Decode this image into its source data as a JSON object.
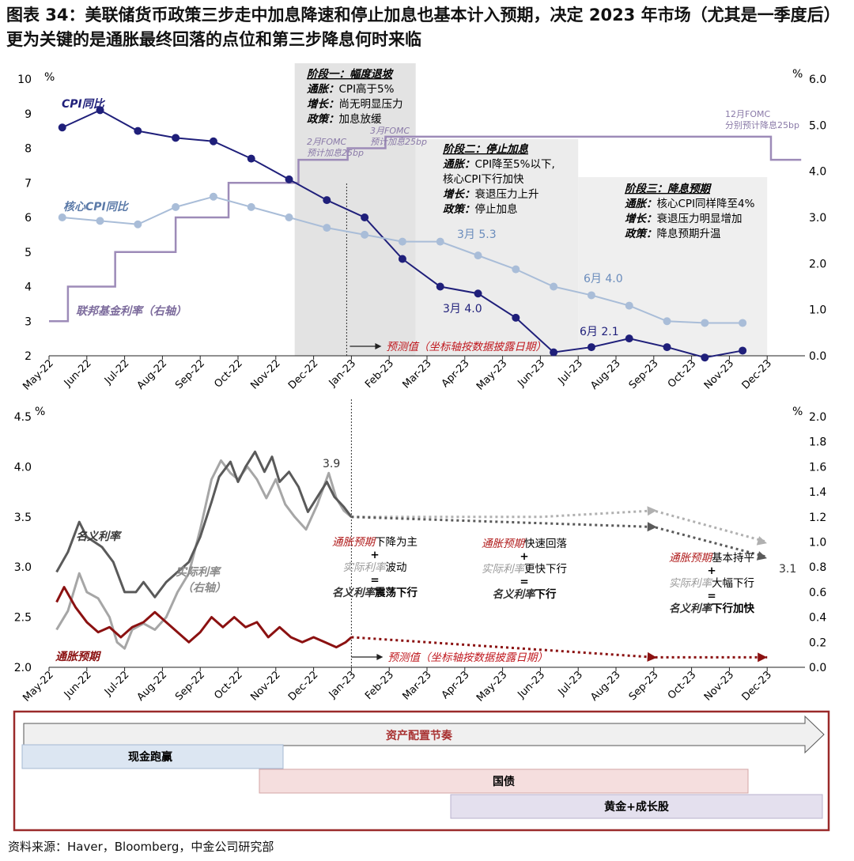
{
  "title": "图表 34：美联储货币政策三步走中加息降速和停止加息也基本计入预期，决定 2023 年市场（尤其是一季度后）更为关键的是通胀最终回落的点位和第三步降息何时来临",
  "source": "资料来源：Haver，Bloomberg，中金公司研究部",
  "months": [
    "May-22",
    "Jun-22",
    "Jul-22",
    "Aug-22",
    "Sep-22",
    "Oct-22",
    "Nov-22",
    "Dec-22",
    "Jan-23",
    "Feb-23",
    "Mar-23",
    "Apr-23",
    "May-23",
    "Jun-23",
    "Jul-23",
    "Aug-23",
    "Sep-23",
    "Oct-23",
    "Nov-23",
    "Dec-23"
  ],
  "chart_data": [
    {
      "type": "line",
      "x": [
        "May-22",
        "Jun-22",
        "Jul-22",
        "Aug-22",
        "Sep-22",
        "Oct-22",
        "Nov-22",
        "Dec-22",
        "Jan-23",
        "Feb-23",
        "Mar-23",
        "Apr-23",
        "May-23",
        "Jun-23",
        "Jul-23",
        "Aug-23",
        "Sep-23",
        "Oct-23",
        "Nov-23",
        "Dec-23"
      ],
      "y_unit": "%",
      "y2_unit": "%",
      "ylim": [
        2,
        10
      ],
      "y2lim": [
        0,
        6
      ],
      "yticks": [
        2,
        3,
        4,
        5,
        6,
        7,
        8,
        9,
        10
      ],
      "y2ticks": [
        "0.0",
        "1.0",
        "2.0",
        "3.0",
        "4.0",
        "5.0",
        "6.0"
      ],
      "series": [
        {
          "name": "CPI同比",
          "axis": "left",
          "color": "#1f1f7a",
          "points": [
            [
              0.35,
              8.6
            ],
            [
              1.35,
              9.1
            ],
            [
              2.35,
              8.5
            ],
            [
              3.35,
              8.3
            ],
            [
              4.35,
              8.2
            ],
            [
              5.35,
              7.7
            ],
            [
              6.35,
              7.1
            ],
            [
              7.35,
              6.5
            ],
            [
              8.35,
              6.0
            ],
            [
              9.35,
              4.8
            ],
            [
              10.35,
              4.0
            ],
            [
              11.35,
              3.8
            ],
            [
              12.35,
              3.1
            ],
            [
              13.35,
              2.1
            ],
            [
              14.35,
              2.25
            ],
            [
              15.35,
              2.5
            ],
            [
              16.35,
              2.25
            ],
            [
              17.35,
              1.95
            ],
            [
              18.35,
              2.15
            ]
          ]
        },
        {
          "name": "核心CPI同比",
          "axis": "left",
          "color": "#a9bdd8",
          "points": [
            [
              0.35,
              6.0
            ],
            [
              1.35,
              5.9
            ],
            [
              2.35,
              5.8
            ],
            [
              3.35,
              6.3
            ],
            [
              4.35,
              6.6
            ],
            [
              5.35,
              6.3
            ],
            [
              6.35,
              6.0
            ],
            [
              7.35,
              5.7
            ],
            [
              8.35,
              5.5
            ],
            [
              9.35,
              5.3
            ],
            [
              10.35,
              5.3
            ],
            [
              11.35,
              4.9
            ],
            [
              12.35,
              4.5
            ],
            [
              13.35,
              4.0
            ],
            [
              14.35,
              3.75
            ],
            [
              15.35,
              3.45
            ],
            [
              16.35,
              3.0
            ],
            [
              17.35,
              2.95
            ],
            [
              18.35,
              2.95
            ]
          ]
        },
        {
          "name": "联邦基金利率（右轴）",
          "axis": "right",
          "color": "#9d8bb8",
          "steps": [
            [
              0,
              0.75
            ],
            [
              0.5,
              1.5
            ],
            [
              1.75,
              2.25
            ],
            [
              3.35,
              3.0
            ],
            [
              4.75,
              3.75
            ],
            [
              6.6,
              4.25
            ],
            [
              7.9,
              4.5
            ],
            [
              8.9,
              4.75
            ],
            [
              12.35,
              4.75
            ],
            [
              18.95,
              4.75
            ],
            [
              19.1,
              4.25
            ],
            [
              19.9,
              4.25
            ]
          ]
        }
      ],
      "stages": [
        {
          "from": 6.5,
          "to": 9.7,
          "title": "阶段一：幅度退坡",
          "lines": [
            [
              "通胀：",
              "CPI高于5%"
            ],
            [
              "增长：",
              "尚无明显压力"
            ],
            [
              "政策：",
              "加息放缓"
            ]
          ]
        },
        {
          "from": 9.7,
          "to": 14.0,
          "title": "阶段二：停止加息",
          "lines": [
            [
              "通胀：",
              "CPI降至5%以下,"
            ],
            [
              "",
              "核心CPI下行加快"
            ],
            [
              "增长：",
              "衰退压力上升"
            ],
            [
              "政策：",
              "停止加息"
            ]
          ]
        },
        {
          "from": 14.0,
          "to": 19.0,
          "title": "阶段三：降息预期",
          "lines": [
            [
              "通胀：",
              "核心CPI同样降至4%"
            ],
            [
              "增长：",
              "衰退压力明显增加"
            ],
            [
              "政策：",
              "降息预期升温"
            ]
          ]
        }
      ],
      "annotations": {
        "fomc_feb": [
          "2月FOMC",
          "预计加息25bp"
        ],
        "fomc_mar": [
          "3月FOMC",
          "预计加息25bp"
        ],
        "fomc_dec": [
          "12月FOMC",
          "分别预计降息25bp"
        ],
        "mar_cpi": "3月 4.0",
        "mar_core": "3月 5.3",
        "jun_cpi": "6月 2.1",
        "jun_core": "6月 4.0",
        "forecast": "预测值（坐标轴按数据披露日期）"
      },
      "forecast_start": 8.0
    },
    {
      "type": "line",
      "x": [
        "May-22",
        "Jun-22",
        "Jul-22",
        "Aug-22",
        "Sep-22",
        "Oct-22",
        "Nov-22",
        "Dec-22",
        "Jan-23",
        "Feb-23",
        "Mar-23",
        "Apr-23",
        "May-23",
        "Jun-23",
        "Jul-23",
        "Aug-23",
        "Sep-23",
        "Oct-23",
        "Nov-23",
        "Dec-23"
      ],
      "y_unit": "%",
      "y2_unit": "%",
      "ylim": [
        2.0,
        4.5
      ],
      "y2lim": [
        0.0,
        2.0
      ],
      "yticks": [
        "2.0",
        "2.5",
        "3.0",
        "3.5",
        "4.0",
        "4.5"
      ],
      "y2ticks": [
        "0.0",
        "0.2",
        "0.4",
        "0.6",
        "0.8",
        "1.0",
        "1.2",
        "1.4",
        "1.6",
        "1.8",
        "2.0"
      ],
      "series": [
        {
          "name": "名义利率",
          "axis": "left",
          "color": "#5a5a5a",
          "points": [
            [
              0.2,
              2.95
            ],
            [
              0.5,
              3.15
            ],
            [
              0.8,
              3.45
            ],
            [
              1.0,
              3.3
            ],
            [
              1.4,
              3.2
            ],
            [
              1.7,
              3.05
            ],
            [
              2.0,
              2.75
            ],
            [
              2.3,
              2.75
            ],
            [
              2.5,
              2.85
            ],
            [
              2.8,
              2.7
            ],
            [
              3.1,
              2.85
            ],
            [
              3.4,
              2.95
            ],
            [
              3.7,
              3.05
            ],
            [
              4.0,
              3.3
            ],
            [
              4.3,
              3.65
            ],
            [
              4.5,
              3.9
            ],
            [
              4.8,
              4.05
            ],
            [
              5.0,
              3.85
            ],
            [
              5.2,
              4.0
            ],
            [
              5.45,
              4.15
            ],
            [
              5.7,
              3.95
            ],
            [
              5.9,
              4.1
            ],
            [
              6.1,
              3.85
            ],
            [
              6.35,
              3.95
            ],
            [
              6.6,
              3.8
            ],
            [
              6.85,
              3.55
            ],
            [
              7.1,
              3.7
            ],
            [
              7.35,
              3.85
            ],
            [
              7.55,
              3.7
            ],
            [
              7.8,
              3.6
            ],
            [
              8.0,
              3.5
            ]
          ]
        },
        {
          "name": "实际利率（右轴）",
          "axis": "right",
          "color": "#a6a6a6",
          "points": [
            [
              0.2,
              0.3
            ],
            [
              0.5,
              0.45
            ],
            [
              0.8,
              0.75
            ],
            [
              1.0,
              0.6
            ],
            [
              1.3,
              0.55
            ],
            [
              1.6,
              0.4
            ],
            [
              1.8,
              0.2
            ],
            [
              2.0,
              0.15
            ],
            [
              2.2,
              0.3
            ],
            [
              2.5,
              0.35
            ],
            [
              2.8,
              0.3
            ],
            [
              3.1,
              0.4
            ],
            [
              3.4,
              0.6
            ],
            [
              3.7,
              0.75
            ],
            [
              4.0,
              1.1
            ],
            [
              4.3,
              1.5
            ],
            [
              4.55,
              1.65
            ],
            [
              4.8,
              1.55
            ],
            [
              5.0,
              1.5
            ],
            [
              5.25,
              1.6
            ],
            [
              5.5,
              1.5
            ],
            [
              5.75,
              1.35
            ],
            [
              6.0,
              1.5
            ],
            [
              6.25,
              1.3
            ],
            [
              6.5,
              1.2
            ],
            [
              6.8,
              1.1
            ],
            [
              7.1,
              1.3
            ],
            [
              7.4,
              1.55
            ],
            [
              7.6,
              1.35
            ],
            [
              7.8,
              1.25
            ],
            [
              8.0,
              1.2
            ]
          ]
        },
        {
          "name": "通胀预期",
          "axis": "left",
          "color": "#8b1111",
          "points": [
            [
              0.2,
              2.65
            ],
            [
              0.4,
              2.8
            ],
            [
              0.7,
              2.6
            ],
            [
              1.0,
              2.45
            ],
            [
              1.3,
              2.35
            ],
            [
              1.6,
              2.4
            ],
            [
              1.9,
              2.3
            ],
            [
              2.2,
              2.4
            ],
            [
              2.5,
              2.45
            ],
            [
              2.8,
              2.55
            ],
            [
              3.1,
              2.45
            ],
            [
              3.4,
              2.35
            ],
            [
              3.7,
              2.25
            ],
            [
              4.0,
              2.35
            ],
            [
              4.3,
              2.5
            ],
            [
              4.6,
              2.4
            ],
            [
              4.9,
              2.5
            ],
            [
              5.2,
              2.4
            ],
            [
              5.5,
              2.45
            ],
            [
              5.8,
              2.3
            ],
            [
              6.1,
              2.4
            ],
            [
              6.4,
              2.3
            ],
            [
              6.7,
              2.25
            ],
            [
              7.0,
              2.3
            ],
            [
              7.3,
              2.25
            ],
            [
              7.6,
              2.2
            ],
            [
              7.85,
              2.25
            ],
            [
              8.0,
              2.3
            ]
          ]
        }
      ],
      "forecasts": [
        {
          "series": "实际利率（右轴）",
          "axis": "right",
          "color": "#b0b0b0",
          "points": [
            [
              8.0,
              1.2
            ],
            [
              13.0,
              1.2
            ],
            [
              16.0,
              1.25
            ],
            [
              19.0,
              1.0
            ]
          ]
        },
        {
          "series": "名义利率",
          "axis": "left",
          "color": "#5a5a5a",
          "points": [
            [
              8.0,
              3.5
            ],
            [
              16.0,
              3.4
            ],
            [
              19.0,
              3.1
            ]
          ]
        },
        {
          "series": "通胀预期",
          "axis": "left",
          "color": "#8b1111",
          "points": [
            [
              8.0,
              2.3
            ],
            [
              12.0,
              2.2
            ],
            [
              16.0,
              2.1
            ],
            [
              19.0,
              2.1
            ]
          ]
        }
      ],
      "annotations": {
        "peak": "3.9",
        "end": "3.1",
        "forecast": "预测值（坐标轴按数据披露日期）",
        "phase1": [
          [
            "通胀预期",
            "下降为主"
          ],
          [
            "+",
            ""
          ],
          [
            "实际利率",
            "波动"
          ],
          [
            "=",
            ""
          ],
          [
            "名义利率",
            "震荡下行"
          ]
        ],
        "phase2": [
          [
            "通胀预期",
            "快速回落"
          ],
          [
            "+",
            ""
          ],
          [
            "实际利率",
            "更快下行"
          ],
          [
            "=",
            ""
          ],
          [
            "名义利率",
            "下行"
          ]
        ],
        "phase3": [
          [
            "通胀预期",
            "基本持平"
          ],
          [
            "+",
            ""
          ],
          [
            "实际利率",
            "大幅下行"
          ],
          [
            "=",
            ""
          ],
          [
            "名义利率",
            "下行加快"
          ]
        ]
      },
      "forecast_start": 8.0
    }
  ],
  "allocation": {
    "title": "资产配置节奏",
    "bars": [
      {
        "label": "现金跑赢",
        "color": "#dce6f2",
        "border": "#a5b8d2"
      },
      {
        "label": "国债",
        "color": "#f5dede",
        "border": "#d4a5a5"
      },
      {
        "label": "黄金+成长股",
        "color": "#e4e0ee",
        "border": "#b8b0cc"
      }
    ]
  }
}
